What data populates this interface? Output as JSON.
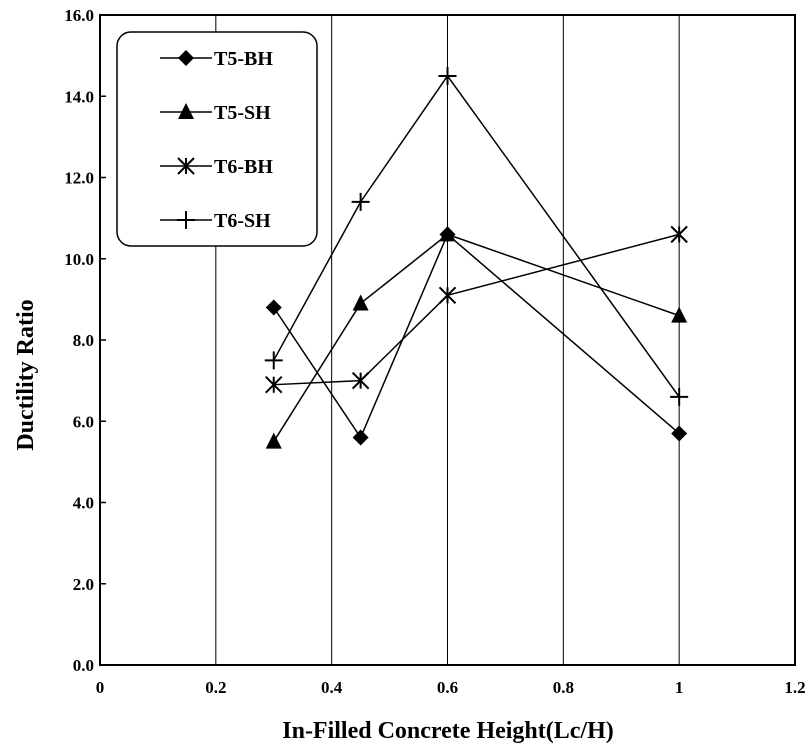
{
  "chart_data": {
    "type": "line",
    "xlabel": "In-Filled Concrete Height(Lc/H)",
    "ylabel": "Ductility Ratio",
    "xlim": [
      0,
      1.2
    ],
    "ylim": [
      0,
      16
    ],
    "x_ticks": [
      "0",
      "0.2",
      "0.4",
      "0.6",
      "0.8",
      "1",
      "1.2"
    ],
    "y_ticks": [
      "0.0",
      "2.0",
      "4.0",
      "6.0",
      "8.0",
      "10.0",
      "12.0",
      "14.0",
      "16.0"
    ],
    "grid": "vertical",
    "legend_position": "top-left",
    "series": [
      {
        "name": "T5-BH",
        "marker": "diamond",
        "x": [
          0.3,
          0.45,
          0.6,
          1.0
        ],
        "values": [
          8.8,
          5.6,
          10.6,
          5.7
        ]
      },
      {
        "name": "T5-SH",
        "marker": "triangle",
        "x": [
          0.3,
          0.45,
          0.6,
          1.0
        ],
        "values": [
          5.5,
          8.9,
          10.6,
          8.6
        ]
      },
      {
        "name": "T6-BH",
        "marker": "asterisk",
        "x": [
          0.3,
          0.45,
          0.6,
          1.0
        ],
        "values": [
          6.9,
          7.0,
          9.1,
          10.6
        ]
      },
      {
        "name": "T6-SH",
        "marker": "plus",
        "x": [
          0.3,
          0.45,
          0.6,
          1.0
        ],
        "values": [
          7.5,
          11.4,
          14.5,
          6.6
        ]
      }
    ]
  }
}
